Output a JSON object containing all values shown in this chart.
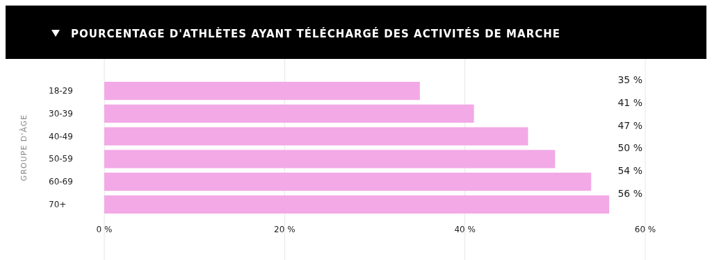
{
  "chart_data": {
    "type": "bar",
    "orientation": "horizontal",
    "title": "POURCENTAGE D'ATHLÈTES AYANT TÉLÉCHARGÉ DES ACTIVITÉS DE MARCHE",
    "ylabel": "GROUPE D'ÂGE",
    "categories": [
      "18-29",
      "30-39",
      "40-49",
      "50-59",
      "60-69",
      "70+"
    ],
    "values": [
      35,
      41,
      47,
      50,
      54,
      56
    ],
    "color": "#f2a9e6",
    "xlim": [
      0,
      60
    ],
    "xticks": [
      {
        "value": 0,
        "label": "0 %"
      },
      {
        "value": 20,
        "label": "20 %"
      },
      {
        "value": 40,
        "label": "40 %"
      },
      {
        "value": 60,
        "label": "60 %"
      }
    ],
    "grid": "x",
    "data_labels": true,
    "value_labels": [
      "35 %",
      "41 %",
      "47 %",
      "50 %",
      "54 %",
      "56 %"
    ]
  }
}
